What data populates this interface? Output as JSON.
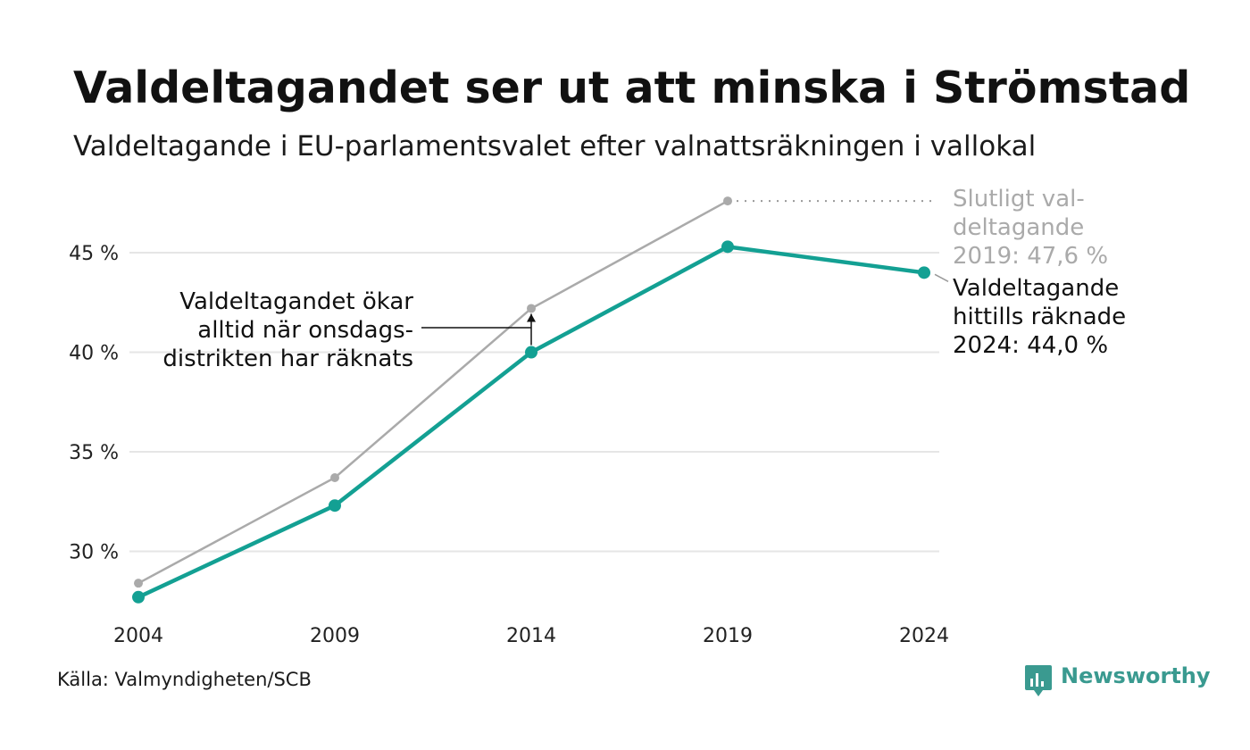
{
  "title": "Valdeltagandet ser ut att minska i Strömstad",
  "subtitle": "Valdeltagande i EU-parlamentsvalet efter valnattsräkningen i vallokal",
  "source": "Källa: Valmyndigheten/SCB",
  "brand": {
    "name": "Newsworthy",
    "icon": "newsworthy-chart-bubble-icon"
  },
  "colors": {
    "highlight": "#13a093",
    "muted": "#aaaaaa",
    "grid": "#e6e6e6",
    "text": "#111111"
  },
  "chart_data": {
    "type": "line",
    "x": [
      "2004",
      "2009",
      "2014",
      "2019",
      "2024"
    ],
    "series": [
      {
        "key": "final",
        "values": [
          28.4,
          33.7,
          42.2,
          47.6,
          null
        ],
        "color": "#aaaaaa"
      },
      {
        "key": "election_night",
        "values": [
          27.7,
          32.3,
          40.0,
          45.3,
          44.0
        ],
        "color": "#13a093"
      }
    ],
    "y_ticks": [
      30,
      35,
      40,
      45
    ],
    "y_tick_labels": [
      "30 %",
      "35 %",
      "40 %",
      "45 %"
    ],
    "ylim": [
      26.3,
      48.5
    ],
    "grid": true,
    "annotations": {
      "final_2019": [
        "Slutligt val-",
        "deltagande",
        "2019: 47,6 %"
      ],
      "current_2024": [
        "Valdeltagande",
        "hittills räknade",
        "2024: 44,0 %"
      ],
      "wednesday": [
        "Valdeltagandet ökar",
        "alltid när onsdags-",
        "distrikten har räknats"
      ]
    }
  }
}
